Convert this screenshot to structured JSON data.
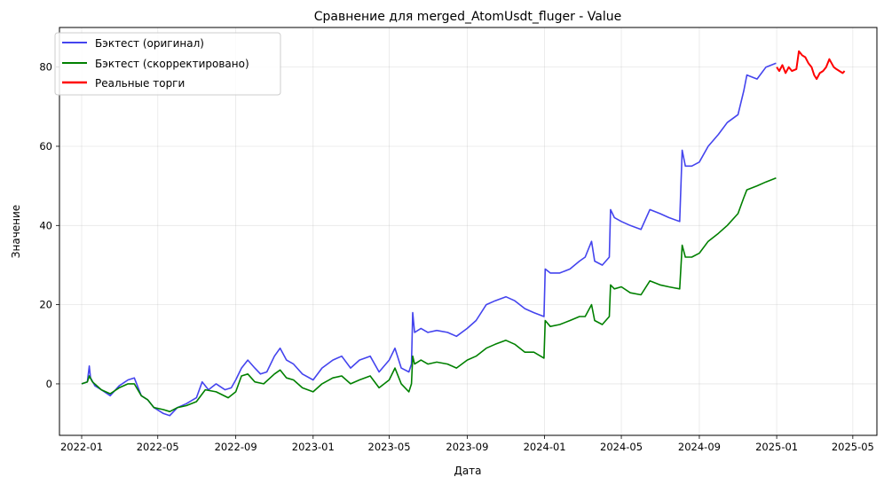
{
  "chart_data": {
    "type": "line",
    "title": "Сравнение для merged_AtomUsdt_fluger - Value",
    "xlabel": "Дата",
    "ylabel": "Значение",
    "xlim": [
      "2021-11-27",
      "2025-06-08"
    ],
    "ylim": [
      -13,
      90
    ],
    "x_ticks": [
      "2022-01",
      "2022-05",
      "2022-09",
      "2023-01",
      "2023-05",
      "2023-09",
      "2024-01",
      "2024-05",
      "2024-09",
      "2025-01",
      "2025-05"
    ],
    "y_ticks": [
      0,
      20,
      40,
      60,
      80
    ],
    "grid": true,
    "legend_position": "upper-left",
    "series": [
      {
        "name": "Бэктест (оригинал)",
        "color": "#4444ee",
        "points": [
          [
            "2022-01-01",
            0
          ],
          [
            "2022-01-10",
            0.5
          ],
          [
            "2022-01-13",
            4.5
          ],
          [
            "2022-01-15",
            1.5
          ],
          [
            "2022-01-22",
            -0.5
          ],
          [
            "2022-02-01",
            -1.5
          ],
          [
            "2022-02-15",
            -3
          ],
          [
            "2022-03-01",
            -0.5
          ],
          [
            "2022-03-15",
            1
          ],
          [
            "2022-03-25",
            1.5
          ],
          [
            "2022-04-05",
            -3
          ],
          [
            "2022-04-15",
            -4
          ],
          [
            "2022-04-25",
            -6
          ],
          [
            "2022-05-10",
            -7.5
          ],
          [
            "2022-05-20",
            -8
          ],
          [
            "2022-06-01",
            -6
          ],
          [
            "2022-06-15",
            -5
          ],
          [
            "2022-07-01",
            -3.5
          ],
          [
            "2022-07-10",
            0.5
          ],
          [
            "2022-07-20",
            -1.5
          ],
          [
            "2022-08-01",
            0
          ],
          [
            "2022-08-15",
            -1.5
          ],
          [
            "2022-08-25",
            -1
          ],
          [
            "2022-09-01",
            1
          ],
          [
            "2022-09-10",
            4
          ],
          [
            "2022-09-20",
            6
          ],
          [
            "2022-10-01",
            4
          ],
          [
            "2022-10-10",
            2.5
          ],
          [
            "2022-10-20",
            3
          ],
          [
            "2022-11-01",
            7
          ],
          [
            "2022-11-10",
            9
          ],
          [
            "2022-11-20",
            6
          ],
          [
            "2022-12-01",
            5
          ],
          [
            "2022-12-15",
            2.5
          ],
          [
            "2023-01-01",
            1
          ],
          [
            "2023-01-15",
            4
          ],
          [
            "2023-02-01",
            6
          ],
          [
            "2023-02-15",
            7
          ],
          [
            "2023-03-01",
            4
          ],
          [
            "2023-03-15",
            6
          ],
          [
            "2023-04-01",
            7
          ],
          [
            "2023-04-15",
            3
          ],
          [
            "2023-05-01",
            6
          ],
          [
            "2023-05-10",
            9
          ],
          [
            "2023-05-20",
            4
          ],
          [
            "2023-06-01",
            3
          ],
          [
            "2023-06-05",
            5
          ],
          [
            "2023-06-07",
            18
          ],
          [
            "2023-06-10",
            13
          ],
          [
            "2023-06-20",
            14
          ],
          [
            "2023-07-01",
            13
          ],
          [
            "2023-07-15",
            13.5
          ],
          [
            "2023-08-01",
            13
          ],
          [
            "2023-08-15",
            12
          ],
          [
            "2023-09-01",
            14
          ],
          [
            "2023-09-15",
            16
          ],
          [
            "2023-10-01",
            20
          ],
          [
            "2023-10-15",
            21
          ],
          [
            "2023-11-01",
            22
          ],
          [
            "2023-11-15",
            21
          ],
          [
            "2023-12-01",
            19
          ],
          [
            "2023-12-15",
            18
          ],
          [
            "2023-12-31",
            17
          ],
          [
            "2024-01-02",
            29
          ],
          [
            "2024-01-10",
            28
          ],
          [
            "2024-01-25",
            28
          ],
          [
            "2024-02-10",
            29
          ],
          [
            "2024-02-25",
            31
          ],
          [
            "2024-03-05",
            32
          ],
          [
            "2024-03-15",
            36
          ],
          [
            "2024-03-20",
            31
          ],
          [
            "2024-04-01",
            30
          ],
          [
            "2024-04-12",
            32
          ],
          [
            "2024-04-14",
            44
          ],
          [
            "2024-04-20",
            42
          ],
          [
            "2024-05-01",
            41
          ],
          [
            "2024-05-15",
            40
          ],
          [
            "2024-06-01",
            39
          ],
          [
            "2024-06-15",
            44
          ],
          [
            "2024-07-01",
            43
          ],
          [
            "2024-07-15",
            42
          ],
          [
            "2024-08-01",
            41
          ],
          [
            "2024-08-05",
            59
          ],
          [
            "2024-08-10",
            55
          ],
          [
            "2024-08-20",
            55
          ],
          [
            "2024-09-01",
            56
          ],
          [
            "2024-09-15",
            60
          ],
          [
            "2024-10-01",
            63
          ],
          [
            "2024-10-15",
            66
          ],
          [
            "2024-11-01",
            68
          ],
          [
            "2024-11-10",
            74
          ],
          [
            "2024-11-15",
            78
          ],
          [
            "2024-12-01",
            77
          ],
          [
            "2024-12-15",
            80
          ],
          [
            "2024-12-31",
            81
          ]
        ]
      },
      {
        "name": "Бэктест (скорректировано)",
        "color": "#008000",
        "points": [
          [
            "2022-01-01",
            0
          ],
          [
            "2022-01-10",
            0.5
          ],
          [
            "2022-01-13",
            2
          ],
          [
            "2022-01-18",
            0.5
          ],
          [
            "2022-02-01",
            -1.5
          ],
          [
            "2022-02-15",
            -2.5
          ],
          [
            "2022-03-01",
            -1
          ],
          [
            "2022-03-15",
            0
          ],
          [
            "2022-03-25",
            0
          ],
          [
            "2022-04-05",
            -3
          ],
          [
            "2022-04-15",
            -4
          ],
          [
            "2022-04-25",
            -6
          ],
          [
            "2022-05-10",
            -6.5
          ],
          [
            "2022-05-20",
            -7
          ],
          [
            "2022-06-01",
            -6
          ],
          [
            "2022-06-15",
            -5.5
          ],
          [
            "2022-07-01",
            -4.5
          ],
          [
            "2022-07-15",
            -1.5
          ],
          [
            "2022-08-01",
            -2
          ],
          [
            "2022-08-20",
            -3.5
          ],
          [
            "2022-09-01",
            -2
          ],
          [
            "2022-09-10",
            2
          ],
          [
            "2022-09-20",
            2.5
          ],
          [
            "2022-10-01",
            0.5
          ],
          [
            "2022-10-15",
            0
          ],
          [
            "2022-11-01",
            2.5
          ],
          [
            "2022-11-10",
            3.5
          ],
          [
            "2022-11-20",
            1.5
          ],
          [
            "2022-12-01",
            1
          ],
          [
            "2022-12-15",
            -1
          ],
          [
            "2023-01-01",
            -2
          ],
          [
            "2023-01-15",
            0
          ],
          [
            "2023-02-01",
            1.5
          ],
          [
            "2023-02-15",
            2
          ],
          [
            "2023-03-01",
            0
          ],
          [
            "2023-03-15",
            1
          ],
          [
            "2023-04-01",
            2
          ],
          [
            "2023-04-15",
            -1
          ],
          [
            "2023-05-01",
            1
          ],
          [
            "2023-05-10",
            4
          ],
          [
            "2023-05-20",
            0
          ],
          [
            "2023-06-01",
            -2
          ],
          [
            "2023-06-05",
            0
          ],
          [
            "2023-06-07",
            7
          ],
          [
            "2023-06-10",
            5
          ],
          [
            "2023-06-20",
            6
          ],
          [
            "2023-07-01",
            5
          ],
          [
            "2023-07-15",
            5.5
          ],
          [
            "2023-08-01",
            5
          ],
          [
            "2023-08-15",
            4
          ],
          [
            "2023-09-01",
            6
          ],
          [
            "2023-09-15",
            7
          ],
          [
            "2023-10-01",
            9
          ],
          [
            "2023-10-15",
            10
          ],
          [
            "2023-11-01",
            11
          ],
          [
            "2023-11-15",
            10
          ],
          [
            "2023-12-01",
            8
          ],
          [
            "2023-12-15",
            8
          ],
          [
            "2023-12-31",
            6.5
          ],
          [
            "2024-01-02",
            16
          ],
          [
            "2024-01-10",
            14.5
          ],
          [
            "2024-01-25",
            15
          ],
          [
            "2024-02-10",
            16
          ],
          [
            "2024-02-25",
            17
          ],
          [
            "2024-03-05",
            17
          ],
          [
            "2024-03-15",
            20
          ],
          [
            "2024-03-20",
            16
          ],
          [
            "2024-04-01",
            15
          ],
          [
            "2024-04-12",
            17
          ],
          [
            "2024-04-14",
            25
          ],
          [
            "2024-04-20",
            24
          ],
          [
            "2024-05-01",
            24.5
          ],
          [
            "2024-05-15",
            23
          ],
          [
            "2024-06-01",
            22.5
          ],
          [
            "2024-06-15",
            26
          ],
          [
            "2024-07-01",
            25
          ],
          [
            "2024-07-15",
            24.5
          ],
          [
            "2024-08-01",
            24
          ],
          [
            "2024-08-05",
            35
          ],
          [
            "2024-08-10",
            32
          ],
          [
            "2024-08-20",
            32
          ],
          [
            "2024-09-01",
            33
          ],
          [
            "2024-09-15",
            36
          ],
          [
            "2024-10-01",
            38
          ],
          [
            "2024-10-15",
            40
          ],
          [
            "2024-11-01",
            43
          ],
          [
            "2024-11-10",
            47
          ],
          [
            "2024-11-15",
            49
          ],
          [
            "2024-12-01",
            50
          ],
          [
            "2024-12-15",
            51
          ],
          [
            "2024-12-31",
            52
          ]
        ]
      },
      {
        "name": "Реальные торги",
        "color": "#ff0000",
        "points": [
          [
            "2025-01-01",
            80
          ],
          [
            "2025-01-05",
            79
          ],
          [
            "2025-01-10",
            80.5
          ],
          [
            "2025-01-15",
            78.5
          ],
          [
            "2025-01-20",
            80
          ],
          [
            "2025-01-25",
            79
          ],
          [
            "2025-02-01",
            79.5
          ],
          [
            "2025-02-05",
            84
          ],
          [
            "2025-02-10",
            83
          ],
          [
            "2025-02-15",
            82.5
          ],
          [
            "2025-02-20",
            81
          ],
          [
            "2025-02-25",
            80
          ],
          [
            "2025-03-01",
            78
          ],
          [
            "2025-03-05",
            77
          ],
          [
            "2025-03-10",
            78.5
          ],
          [
            "2025-03-15",
            79
          ],
          [
            "2025-03-20",
            80
          ],
          [
            "2025-03-25",
            82
          ],
          [
            "2025-04-01",
            80
          ],
          [
            "2025-04-05",
            79.5
          ],
          [
            "2025-04-10",
            79
          ],
          [
            "2025-04-15",
            78.5
          ],
          [
            "2025-04-18",
            79
          ]
        ]
      }
    ]
  }
}
